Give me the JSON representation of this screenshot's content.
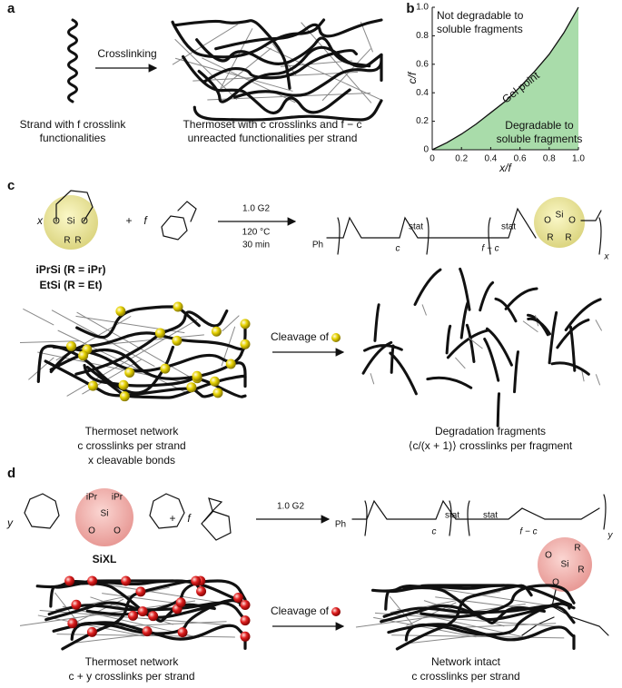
{
  "panel_a": {
    "label": "a",
    "arrow_label": "Crosslinking",
    "strand_caption": [
      "Strand with f crosslink",
      "functionalities"
    ],
    "thermoset_caption": [
      "Thermoset with c crosslinks and f − c",
      "unreacted functionalities per strand"
    ]
  },
  "panel_b": {
    "label": "b"
  },
  "chart_data": {
    "type": "area",
    "x_label": "x/f",
    "y_label": "c/f",
    "x": [
      0,
      0.1,
      0.2,
      0.3,
      0.4,
      0.5,
      0.6,
      0.7,
      0.8,
      0.9,
      1.0
    ],
    "series": [
      {
        "name": "Gel point",
        "color": "#a9dcaa",
        "values": [
          0,
          0.05,
          0.11,
          0.18,
          0.26,
          0.34,
          0.44,
          0.55,
          0.67,
          0.82,
          1.0
        ]
      }
    ],
    "xlim": [
      0,
      1
    ],
    "ylim": [
      0,
      1
    ],
    "xticks": [
      0,
      0.2,
      0.4,
      0.6,
      0.8,
      {
        "value": 1,
        "label": "1.0"
      }
    ],
    "yticks": [
      0,
      0.2,
      0.4,
      0.6,
      0.8,
      {
        "value": 1,
        "label": "1.0"
      }
    ],
    "annotations": {
      "above": [
        "Not degradable to",
        "soluble fragments"
      ],
      "below": [
        "Degradable to",
        "soluble fragments"
      ]
    }
  },
  "panel_c": {
    "label": "c",
    "monomer_coeff": "x",
    "plus": "+",
    "comonomer_coeff": "f",
    "monomer_atoms": [
      "O",
      "Si",
      "O",
      "R",
      "R"
    ],
    "conditions": [
      "1.0 G2",
      "120 °C",
      "30 min"
    ],
    "polymer_labels": [
      "Ph",
      "c",
      "stat",
      "f − c",
      "stat",
      "x"
    ],
    "polymer_atoms": [
      "O",
      "Si",
      "O",
      "R",
      "R"
    ],
    "monomers": [
      "iPrSi (R = iPr)",
      "EtSi (R = Et)"
    ],
    "cleavage_label": "Cleavage of",
    "network_caption": [
      "Thermoset network",
      "c crosslinks per strand",
      "x cleavable bonds"
    ],
    "fragment_caption": [
      "Degradation fragments",
      "⟨c/(x + 1)⟩ crosslinks per fragment"
    ]
  },
  "panel_d": {
    "label": "d",
    "monomer_coeff": "y",
    "plus": "+",
    "comonomer_coeff": "f",
    "monomer_atoms": [
      "iPr",
      "iPr",
      "Si",
      "O",
      "O"
    ],
    "monomer_name": "SiXL",
    "conditions": [
      "1.0 G2"
    ],
    "polymer_labels": [
      "Ph",
      "c",
      "stat",
      "f − c",
      "stat",
      "y"
    ],
    "polymer_atoms": [
      "O",
      "Si",
      "R",
      "R",
      "O"
    ],
    "cleavage_label": "Cleavage of",
    "network_caption": [
      "Thermoset network",
      "c + y crosslinks per strand"
    ],
    "intact_caption": [
      "Network intact",
      "c crosslinks per strand"
    ]
  }
}
